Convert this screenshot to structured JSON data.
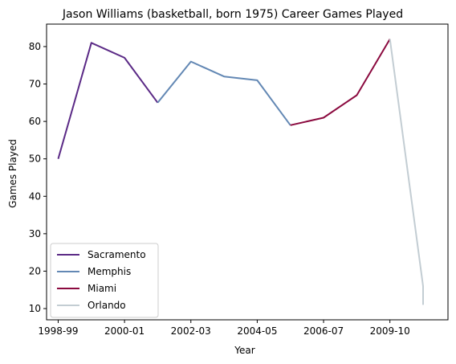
{
  "chart_data": {
    "type": "line",
    "title": "Jason Williams (basketball, born 1975) Career Games Played",
    "xlabel": "Year",
    "ylabel": "Games Played",
    "xlim": [
      -0.35,
      11.75
    ],
    "ylim": [
      7,
      86
    ],
    "grid": false,
    "legend_position": "lower left",
    "x_ticks": [
      {
        "x": 0,
        "label": "1998-99"
      },
      {
        "x": 2,
        "label": "2000-01"
      },
      {
        "x": 4,
        "label": "2002-03"
      },
      {
        "x": 6,
        "label": "2004-05"
      },
      {
        "x": 8,
        "label": "2006-07"
      },
      {
        "x": 10,
        "label": "2009-10"
      }
    ],
    "y_ticks": [
      10,
      20,
      30,
      40,
      50,
      60,
      70,
      80
    ],
    "series": [
      {
        "name": "Sacramento",
        "color": "#5b2a86",
        "points": [
          [
            0,
            50
          ],
          [
            1,
            81
          ],
          [
            2,
            77
          ],
          [
            3,
            65
          ]
        ]
      },
      {
        "name": "Memphis",
        "color": "#6388b4",
        "points": [
          [
            3,
            65
          ],
          [
            4,
            76
          ],
          [
            5,
            72
          ],
          [
            6,
            71
          ],
          [
            7,
            59
          ]
        ]
      },
      {
        "name": "Miami",
        "color": "#8b0a3f",
        "points": [
          [
            7,
            59
          ],
          [
            8,
            61
          ],
          [
            9,
            67
          ],
          [
            10,
            82
          ]
        ]
      },
      {
        "name": "Orlando",
        "color": "#c3cdd3",
        "points": [
          [
            10,
            82
          ],
          [
            11,
            16
          ],
          [
            11,
            11
          ]
        ]
      }
    ]
  }
}
